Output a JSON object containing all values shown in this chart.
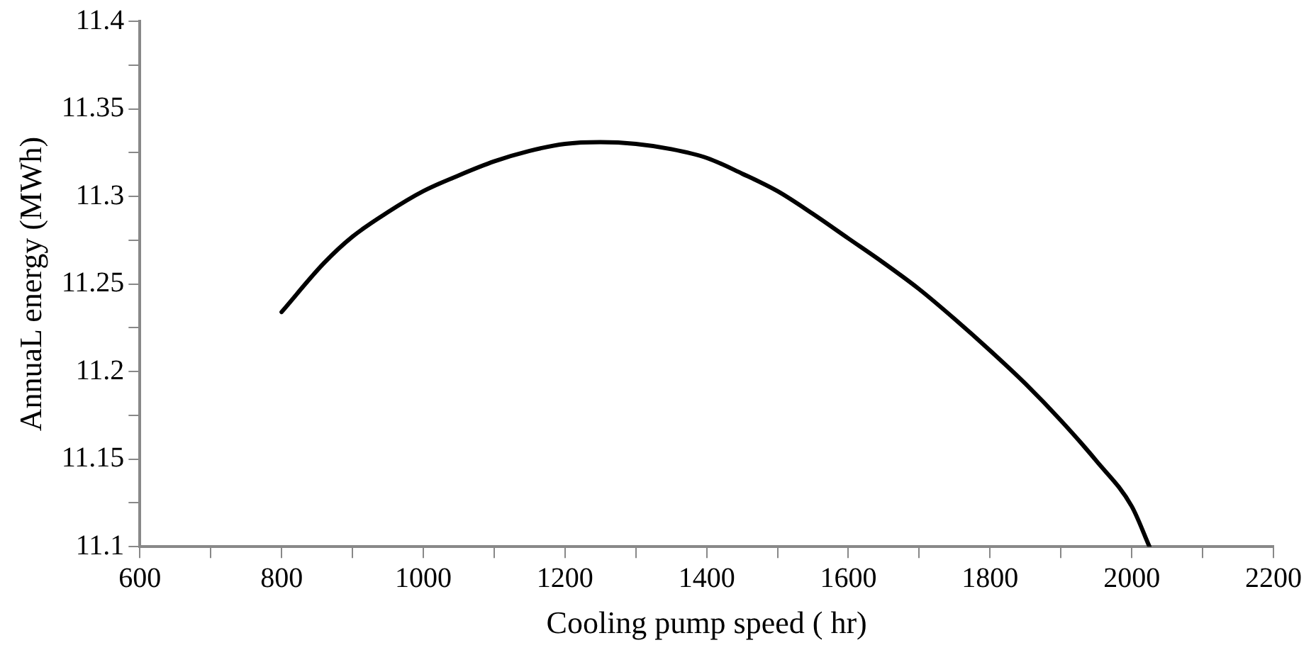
{
  "chart_data": {
    "type": "line",
    "xlabel": "Cooling pump speed ( hr)",
    "ylabel": "AnnuaL energy (MWh)",
    "x": [
      800,
      860,
      900,
      950,
      1000,
      1050,
      1100,
      1150,
      1200,
      1250,
      1300,
      1350,
      1400,
      1450,
      1500,
      1550,
      1600,
      1650,
      1700,
      1750,
      1800,
      1850,
      1900,
      1950,
      2000,
      2025
    ],
    "series": [
      {
        "color": "#000000",
        "values": [
          11.234,
          11.262,
          11.277,
          11.291,
          11.303,
          11.312,
          11.32,
          11.326,
          11.33,
          11.331,
          11.33,
          11.327,
          11.322,
          11.313,
          11.303,
          11.29,
          11.276,
          11.262,
          11.247,
          11.23,
          11.212,
          11.193,
          11.172,
          11.149,
          11.123,
          11.1
        ]
      }
    ],
    "xlim": [
      600,
      2200
    ],
    "xticks": [
      600,
      {
        "value": 700,
        "label": null
      },
      800,
      {
        "value": 900,
        "label": null
      },
      1000,
      {
        "value": 1100,
        "label": null
      },
      1200,
      {
        "value": 1300,
        "label": null
      },
      1400,
      {
        "value": 1500,
        "label": null
      },
      1600,
      {
        "value": 1700,
        "label": null
      },
      1800,
      {
        "value": 1900,
        "label": null
      },
      2000,
      {
        "value": 2100,
        "label": null
      },
      2200
    ],
    "ylim": [
      11.1,
      11.4
    ],
    "yticks": [
      11.1,
      {
        "value": 11.125,
        "label": null
      },
      11.15,
      {
        "value": 11.175,
        "label": null
      },
      11.2,
      {
        "value": 11.225,
        "label": null
      },
      11.25,
      {
        "value": 11.275,
        "label": null
      },
      11.3,
      {
        "value": 11.325,
        "label": null
      },
      11.35,
      {
        "value": 11.375,
        "label": null
      },
      11.4
    ],
    "grid": false,
    "legend": false,
    "marker": "none",
    "line_style": "solid"
  }
}
